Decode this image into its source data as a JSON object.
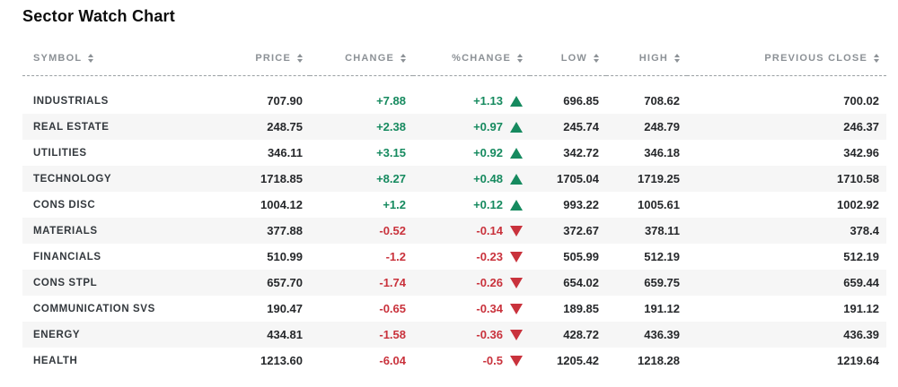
{
  "title": "Sector Watch Chart",
  "colors": {
    "positive": "#168a5f",
    "negative": "#c9323c",
    "header_text": "#8c9196",
    "row_alt_bg": "#f6f6f6",
    "value_text": "#26282b"
  },
  "table": {
    "columns": [
      {
        "key": "symbol",
        "label": "SYMBOL",
        "align": "left"
      },
      {
        "key": "price",
        "label": "PRICE",
        "align": "right"
      },
      {
        "key": "change",
        "label": "CHANGE",
        "align": "right"
      },
      {
        "key": "pct_change",
        "label": "%CHANGE",
        "align": "right"
      },
      {
        "key": "low",
        "label": "LOW",
        "align": "right"
      },
      {
        "key": "high",
        "label": "HIGH",
        "align": "right"
      },
      {
        "key": "prev_close",
        "label": "PREVIOUS CLOSE",
        "align": "right"
      }
    ],
    "rows": [
      {
        "symbol": "INDUSTRIALS",
        "price": "707.90",
        "change": "+7.88",
        "pct_change": "+1.13",
        "direction": "up",
        "low": "696.85",
        "high": "708.62",
        "prev_close": "700.02"
      },
      {
        "symbol": "REAL ESTATE",
        "price": "248.75",
        "change": "+2.38",
        "pct_change": "+0.97",
        "direction": "up",
        "low": "245.74",
        "high": "248.79",
        "prev_close": "246.37"
      },
      {
        "symbol": "UTILITIES",
        "price": "346.11",
        "change": "+3.15",
        "pct_change": "+0.92",
        "direction": "up",
        "low": "342.72",
        "high": "346.18",
        "prev_close": "342.96"
      },
      {
        "symbol": "TECHNOLOGY",
        "price": "1718.85",
        "change": "+8.27",
        "pct_change": "+0.48",
        "direction": "up",
        "low": "1705.04",
        "high": "1719.25",
        "prev_close": "1710.58"
      },
      {
        "symbol": "CONS DISC",
        "price": "1004.12",
        "change": "+1.2",
        "pct_change": "+0.12",
        "direction": "up",
        "low": "993.22",
        "high": "1005.61",
        "prev_close": "1002.92"
      },
      {
        "symbol": "MATERIALS",
        "price": "377.88",
        "change": "-0.52",
        "pct_change": "-0.14",
        "direction": "down",
        "low": "372.67",
        "high": "378.11",
        "prev_close": "378.4"
      },
      {
        "symbol": "FINANCIALS",
        "price": "510.99",
        "change": "-1.2",
        "pct_change": "-0.23",
        "direction": "down",
        "low": "505.99",
        "high": "512.19",
        "prev_close": "512.19"
      },
      {
        "symbol": "CONS STPL",
        "price": "657.70",
        "change": "-1.74",
        "pct_change": "-0.26",
        "direction": "down",
        "low": "654.02",
        "high": "659.75",
        "prev_close": "659.44"
      },
      {
        "symbol": "COMMUNICATION SVS",
        "price": "190.47",
        "change": "-0.65",
        "pct_change": "-0.34",
        "direction": "down",
        "low": "189.85",
        "high": "191.12",
        "prev_close": "191.12"
      },
      {
        "symbol": "ENERGY",
        "price": "434.81",
        "change": "-1.58",
        "pct_change": "-0.36",
        "direction": "down",
        "low": "428.72",
        "high": "436.39",
        "prev_close": "436.39"
      },
      {
        "symbol": "HEALTH",
        "price": "1213.60",
        "change": "-6.04",
        "pct_change": "-0.5",
        "direction": "down",
        "low": "1205.42",
        "high": "1218.28",
        "prev_close": "1219.64"
      }
    ]
  }
}
